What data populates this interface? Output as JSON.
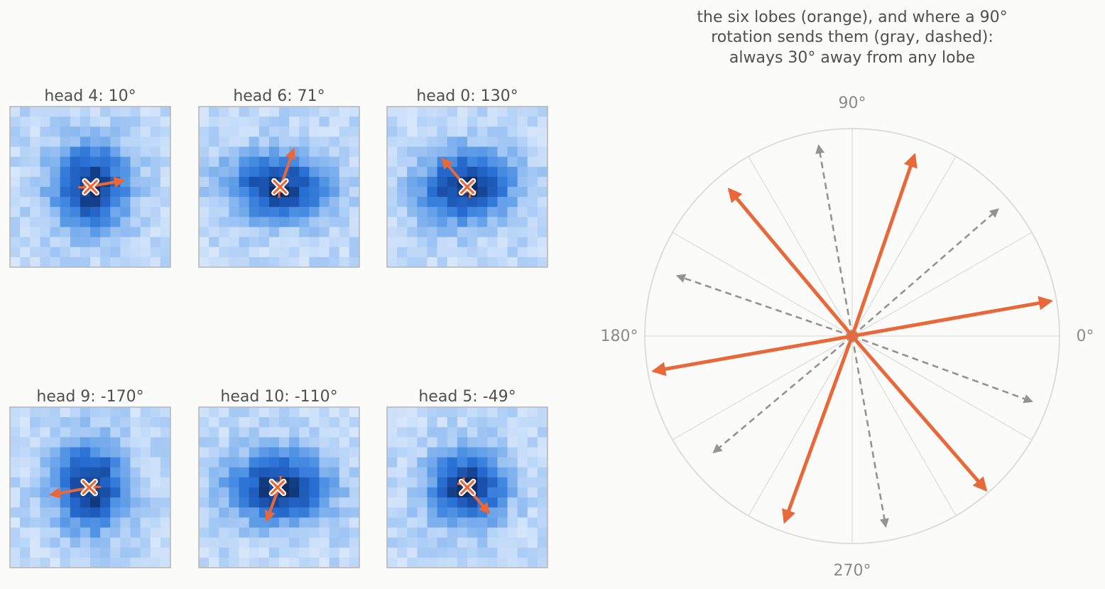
{
  "chart_data": [
    {
      "type": "heatmap",
      "panels": [
        {
          "title": "head 4: 10°",
          "angle_deg": 10,
          "plus": [
            -0.55,
            -0.05
          ],
          "cross": [
            0.05,
            0.0
          ],
          "arrow_len": 1.95,
          "sigma": [
            2.6,
            2.9
          ],
          "rot_deg": 10
        },
        {
          "title": "head 6: 71°",
          "angle_deg": 71,
          "plus": [
            0.0,
            -0.45
          ],
          "cross": [
            0.1,
            0.0
          ],
          "arrow_len": 2.2,
          "sigma": [
            3.4,
            2.2
          ],
          "rot_deg": 5
        },
        {
          "title": "head 0: 130°",
          "angle_deg": 130,
          "plus": [
            0.25,
            -0.45
          ],
          "cross": [
            0.0,
            0.0
          ],
          "arrow_len": 2.1,
          "sigma": [
            3.2,
            2.4
          ],
          "rot_deg": -10
        },
        {
          "title": "head 9: -170°",
          "angle_deg": -170,
          "plus": [
            0.45,
            0.05
          ],
          "cross": [
            -0.1,
            0.0
          ],
          "arrow_len": 2.2,
          "sigma": [
            2.4,
            3.0
          ],
          "rot_deg": 0
        },
        {
          "title": "head 10: -110°",
          "angle_deg": -110,
          "plus": [
            0.15,
            0.5
          ],
          "cross": [
            -0.15,
            0.0
          ],
          "arrow_len": 2.0,
          "sigma": [
            3.4,
            2.4
          ],
          "rot_deg": 0
        },
        {
          "title": "head 5: -49°",
          "angle_deg": -49,
          "plus": [
            -0.35,
            0.35
          ],
          "cross": [
            0.0,
            0.0
          ],
          "arrow_len": 1.9,
          "sigma": [
            2.6,
            2.5
          ],
          "rot_deg": -15
        }
      ]
    },
    {
      "type": "polar",
      "title_lines": [
        "the six lobes (orange), and where a 90°",
        "rotation sends them (gray, dashed):",
        "always 30° away from any lobe"
      ],
      "angle_labels": [
        {
          "deg": 0,
          "text": "0°"
        },
        {
          "deg": 90,
          "text": "90°"
        },
        {
          "deg": 180,
          "text": "180°"
        },
        {
          "deg": 270,
          "text": "270°"
        }
      ],
      "gridline_step_deg": 30,
      "lobes": [
        {
          "angle_deg": 10,
          "r": 0.97
        },
        {
          "angle_deg": 71,
          "r": 0.92
        },
        {
          "angle_deg": 130,
          "r": 0.92
        },
        {
          "angle_deg": -170,
          "r": 0.97
        },
        {
          "angle_deg": -110,
          "r": 0.95
        },
        {
          "angle_deg": -49,
          "r": 0.98
        }
      ],
      "rotated": [
        {
          "angle_deg": 100,
          "r": 0.93
        },
        {
          "angle_deg": 161,
          "r": 0.89
        },
        {
          "angle_deg": -140,
          "r": 0.87
        },
        {
          "angle_deg": -80,
          "r": 0.93
        },
        {
          "angle_deg": -20,
          "r": 0.92
        },
        {
          "angle_deg": 41,
          "r": 0.93
        }
      ],
      "colors": {
        "lobe": "#e8683a",
        "rotated": "#939393",
        "grid": "#dcdcdc",
        "outline": "#dddddd"
      }
    }
  ]
}
